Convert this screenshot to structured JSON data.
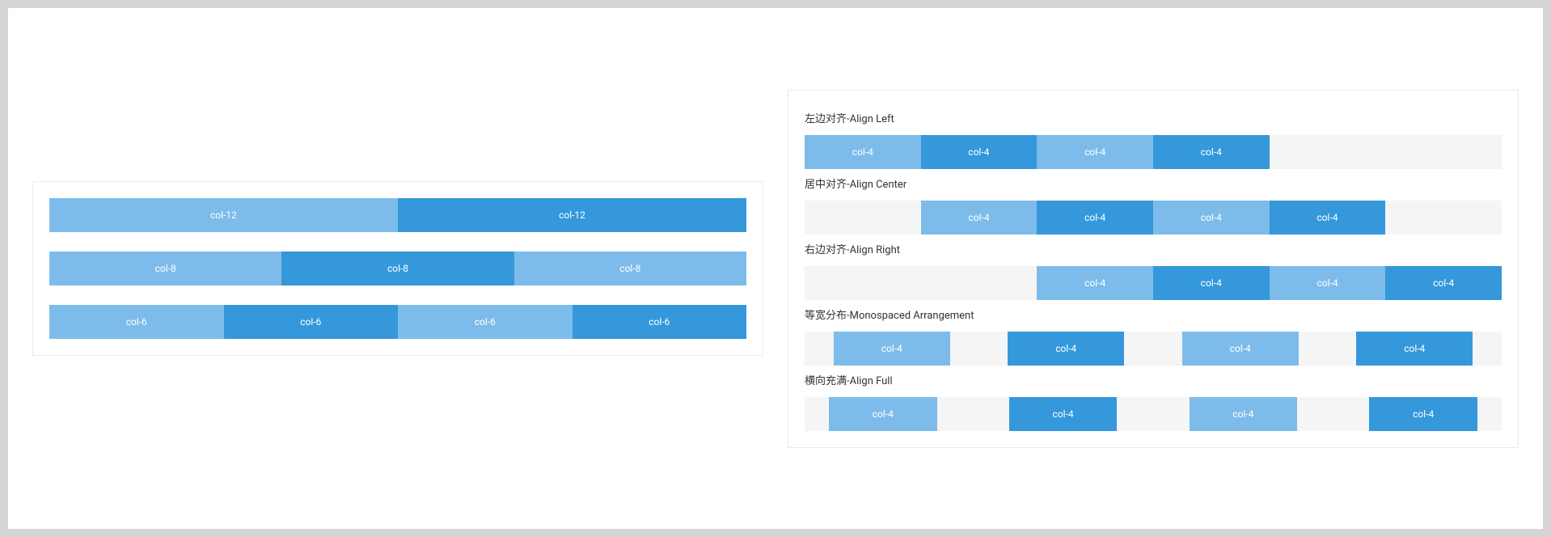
{
  "colors": {
    "light_blue": "#7dbcea",
    "dark_blue": "#3498db",
    "row_bg": "#f5f5f5",
    "panel_border": "#ebebeb",
    "page_bg": "#d4d4d4",
    "panel_bg": "#ffffff",
    "text_dark": "#333333",
    "text_white": "#ffffff"
  },
  "left_panel": {
    "rows": [
      {
        "cells": [
          {
            "label": "col-12",
            "width": "col-12",
            "shade": "light"
          },
          {
            "label": "col-12",
            "width": "col-12",
            "shade": "dark"
          }
        ]
      },
      {
        "cells": [
          {
            "label": "col-8",
            "width": "col-8",
            "shade": "light"
          },
          {
            "label": "col-8",
            "width": "col-8",
            "shade": "dark"
          },
          {
            "label": "col-8",
            "width": "col-8",
            "shade": "light"
          }
        ]
      },
      {
        "cells": [
          {
            "label": "col-6",
            "width": "col-6",
            "shade": "light"
          },
          {
            "label": "col-6",
            "width": "col-6",
            "shade": "dark"
          },
          {
            "label": "col-6",
            "width": "col-6",
            "shade": "light"
          },
          {
            "label": "col-6",
            "width": "col-6",
            "shade": "dark"
          }
        ]
      }
    ]
  },
  "right_panel": {
    "sections": [
      {
        "title": "左边对齐-Align Left",
        "justify": "start",
        "cells": [
          {
            "label": "col-4",
            "shade": "light"
          },
          {
            "label": "col-4",
            "shade": "dark"
          },
          {
            "label": "col-4",
            "shade": "light"
          },
          {
            "label": "col-4",
            "shade": "dark"
          }
        ]
      },
      {
        "title": "居中对齐-Align Center",
        "justify": "center",
        "cells": [
          {
            "label": "col-4",
            "shade": "light"
          },
          {
            "label": "col-4",
            "shade": "dark"
          },
          {
            "label": "col-4",
            "shade": "light"
          },
          {
            "label": "col-4",
            "shade": "dark"
          }
        ]
      },
      {
        "title": "右边对齐-Align Right",
        "justify": "end",
        "cells": [
          {
            "label": "col-4",
            "shade": "light"
          },
          {
            "label": "col-4",
            "shade": "dark"
          },
          {
            "label": "col-4",
            "shade": "light"
          },
          {
            "label": "col-4",
            "shade": "dark"
          }
        ]
      },
      {
        "title": "等宽分布-Monospaced Arrangement",
        "justify": "around",
        "cells": [
          {
            "label": "col-4",
            "shade": "light"
          },
          {
            "label": "col-4",
            "shade": "dark"
          },
          {
            "label": "col-4",
            "shade": "light"
          },
          {
            "label": "col-4",
            "shade": "dark"
          }
        ]
      },
      {
        "title": "横向充满-Align Full",
        "justify": "between",
        "cells": [
          {
            "label": "col-4",
            "shade": "light"
          },
          {
            "label": "col-4",
            "shade": "dark"
          },
          {
            "label": "col-4",
            "shade": "light"
          },
          {
            "label": "col-4",
            "shade": "dark"
          }
        ]
      }
    ]
  }
}
